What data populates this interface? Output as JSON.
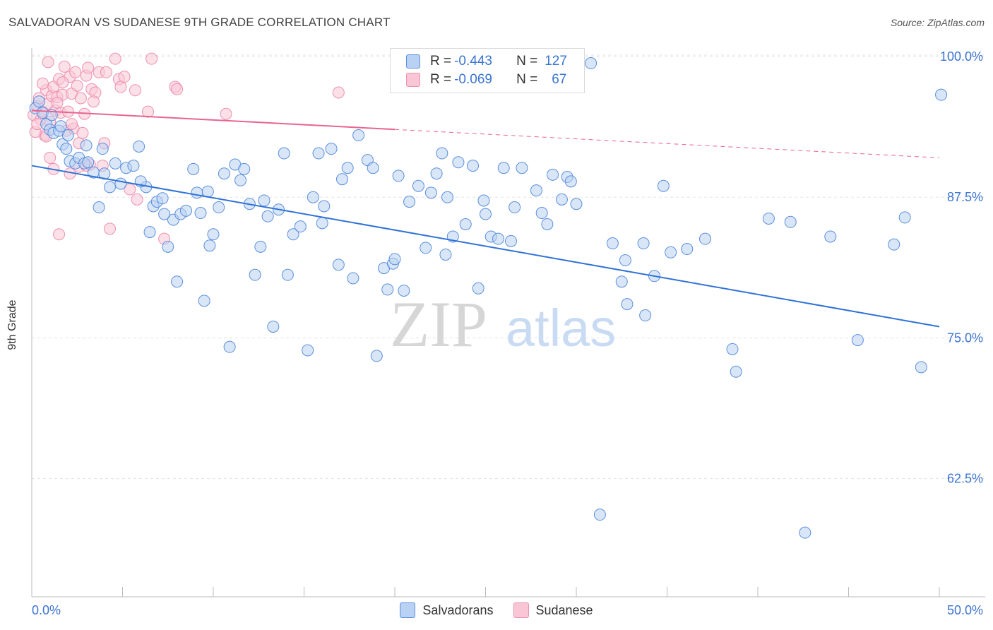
{
  "title": "SALVADORAN VS SUDANESE 9TH GRADE CORRELATION CHART",
  "source": "Source: ZipAtlas.com",
  "watermark": {
    "zip": "ZIP",
    "atlas": "atlas"
  },
  "legend_top": [
    {
      "r_label": "R = ",
      "r_value": "-0.443",
      "n_label": "N = ",
      "n_value": "127"
    },
    {
      "r_label": "R = ",
      "r_value": "-0.069",
      "n_label": "N = ",
      "n_value": "67"
    }
  ],
  "colors": {
    "blue_fill": "#b9d1f3",
    "blue_stroke": "#5a8fdc",
    "blue_line": "#2f72d6",
    "pink_fill": "#f9c6d6",
    "pink_stroke": "#ee8fb0",
    "pink_line": "#e8648f",
    "tick_text": "#3c74d0",
    "grid": "#e3e3e3"
  },
  "chart_data": {
    "type": "scatter",
    "title": "SALVADORAN VS SUDANESE 9TH GRADE CORRELATION CHART",
    "xlabel": "",
    "ylabel": "9th Grade",
    "xlim": [
      0,
      50
    ],
    "ylim": [
      52,
      100.5
    ],
    "x_tick_labels": [
      "0.0%",
      "50.0%"
    ],
    "y_ticks": [
      62.5,
      75.0,
      87.5,
      100.0
    ],
    "y_tick_labels": [
      "62.5%",
      "75.0%",
      "87.5%",
      "100.0%"
    ],
    "grid": true,
    "legend_position": "bottom",
    "series": [
      {
        "name": "Salvadorans",
        "r": -0.443,
        "n": 127,
        "trend": {
          "x": [
            0,
            50
          ],
          "y": [
            90.3,
            76.0
          ],
          "dashed_from": null
        },
        "points": [
          [
            0.2,
            95.4
          ],
          [
            0.4,
            96.0
          ],
          [
            0.6,
            95.0
          ],
          [
            0.8,
            94.0
          ],
          [
            1.0,
            93.5
          ],
          [
            1.2,
            93.2
          ],
          [
            1.5,
            93.4
          ],
          [
            1.7,
            92.2
          ],
          [
            1.9,
            91.8
          ],
          [
            2.1,
            90.7
          ],
          [
            2.4,
            90.5
          ],
          [
            2.6,
            91.0
          ],
          [
            2.9,
            90.5
          ],
          [
            3.1,
            90.6
          ],
          [
            3.4,
            89.7
          ],
          [
            3.7,
            86.6
          ],
          [
            3.9,
            91.8
          ],
          [
            4.3,
            88.4
          ],
          [
            4.6,
            90.5
          ],
          [
            4.9,
            88.7
          ],
          [
            5.2,
            90.1
          ],
          [
            5.6,
            90.3
          ],
          [
            5.9,
            92.0
          ],
          [
            6.3,
            88.4
          ],
          [
            6.5,
            84.4
          ],
          [
            6.7,
            86.7
          ],
          [
            6.9,
            87.1
          ],
          [
            7.2,
            87.4
          ],
          [
            7.5,
            83.1
          ],
          [
            7.8,
            85.5
          ],
          [
            8.0,
            80.0
          ],
          [
            8.2,
            86.0
          ],
          [
            8.5,
            86.3
          ],
          [
            8.9,
            90.0
          ],
          [
            9.1,
            87.9
          ],
          [
            9.3,
            86.1
          ],
          [
            9.5,
            78.3
          ],
          [
            9.8,
            83.2
          ],
          [
            10.0,
            84.2
          ],
          [
            10.3,
            86.6
          ],
          [
            10.6,
            89.6
          ],
          [
            10.9,
            74.2
          ],
          [
            11.2,
            90.4
          ],
          [
            11.5,
            89.0
          ],
          [
            11.7,
            90.0
          ],
          [
            12.0,
            86.9
          ],
          [
            12.3,
            80.6
          ],
          [
            12.6,
            83.1
          ],
          [
            13.0,
            85.8
          ],
          [
            13.3,
            76.0
          ],
          [
            13.6,
            86.4
          ],
          [
            13.9,
            91.4
          ],
          [
            14.1,
            80.6
          ],
          [
            14.4,
            84.2
          ],
          [
            14.8,
            84.9
          ],
          [
            15.2,
            73.9
          ],
          [
            15.5,
            87.5
          ],
          [
            15.8,
            91.4
          ],
          [
            16.1,
            86.7
          ],
          [
            16.5,
            91.8
          ],
          [
            16.9,
            81.5
          ],
          [
            17.1,
            89.1
          ],
          [
            17.4,
            90.1
          ],
          [
            17.7,
            80.3
          ],
          [
            18.0,
            93.0
          ],
          [
            18.5,
            90.8
          ],
          [
            18.8,
            90.1
          ],
          [
            19.0,
            73.4
          ],
          [
            19.4,
            81.2
          ],
          [
            19.6,
            79.3
          ],
          [
            19.9,
            81.6
          ],
          [
            20.2,
            89.4
          ],
          [
            20.5,
            79.2
          ],
          [
            20.8,
            87.1
          ],
          [
            21.3,
            88.5
          ],
          [
            21.7,
            83.0
          ],
          [
            22.0,
            87.9
          ],
          [
            22.3,
            89.6
          ],
          [
            22.6,
            91.4
          ],
          [
            22.9,
            87.5
          ],
          [
            23.2,
            84.0
          ],
          [
            23.5,
            90.6
          ],
          [
            23.9,
            85.1
          ],
          [
            24.3,
            90.3
          ],
          [
            24.6,
            79.4
          ],
          [
            24.9,
            87.2
          ],
          [
            25.3,
            84.0
          ],
          [
            25.7,
            83.8
          ],
          [
            26.0,
            90.1
          ],
          [
            26.4,
            83.6
          ],
          [
            26.6,
            86.6
          ],
          [
            27.0,
            90.1
          ],
          [
            27.8,
            88.1
          ],
          [
            28.1,
            86.1
          ],
          [
            28.7,
            89.5
          ],
          [
            29.2,
            87.3
          ],
          [
            29.5,
            89.3
          ],
          [
            29.7,
            88.9
          ],
          [
            30.0,
            86.9
          ],
          [
            30.8,
            99.4
          ],
          [
            31.3,
            59.3
          ],
          [
            32.0,
            83.4
          ],
          [
            32.5,
            80.0
          ],
          [
            32.7,
            81.9
          ],
          [
            32.8,
            78.0
          ],
          [
            33.7,
            83.4
          ],
          [
            33.8,
            77.0
          ],
          [
            34.3,
            80.5
          ],
          [
            34.8,
            88.5
          ],
          [
            36.1,
            82.9
          ],
          [
            37.1,
            83.8
          ],
          [
            38.6,
            74.0
          ],
          [
            38.8,
            72.0
          ],
          [
            40.6,
            85.6
          ],
          [
            41.8,
            85.3
          ],
          [
            42.6,
            57.7
          ],
          [
            45.5,
            74.8
          ],
          [
            47.5,
            83.3
          ],
          [
            48.1,
            85.7
          ],
          [
            49.0,
            72.4
          ],
          [
            50.1,
            96.6
          ],
          [
            1.1,
            94.8
          ],
          [
            2.0,
            93.0
          ],
          [
            3.0,
            92.1
          ],
          [
            4.0,
            89.6
          ],
          [
            6.0,
            88.9
          ],
          [
            7.3,
            86.0
          ],
          [
            9.7,
            88.0
          ],
          [
            12.8,
            87.2
          ],
          [
            16.0,
            85.2
          ],
          [
            20.0,
            82.0
          ],
          [
            22.8,
            82.4
          ],
          [
            25.0,
            86.0
          ],
          [
            28.4,
            85.1
          ],
          [
            35.2,
            82.6
          ],
          [
            44.0,
            84.0
          ],
          [
            1.6,
            93.8
          ]
        ]
      },
      {
        "name": "Sudanese",
        "r": -0.069,
        "n": 67,
        "trend": {
          "x": [
            0,
            50
          ],
          "y": [
            95.2,
            91.0
          ],
          "dashed_from": 20.0
        },
        "points": [
          [
            0.1,
            94.8
          ],
          [
            0.3,
            95.6
          ],
          [
            0.4,
            96.3
          ],
          [
            0.5,
            94.4
          ],
          [
            0.6,
            95.1
          ],
          [
            0.7,
            93.0
          ],
          [
            0.8,
            97.0
          ],
          [
            0.9,
            95.8
          ],
          [
            1.0,
            94.2
          ],
          [
            1.1,
            96.5
          ],
          [
            1.2,
            97.3
          ],
          [
            1.3,
            95.2
          ],
          [
            1.4,
            96.4
          ],
          [
            1.5,
            98.0
          ],
          [
            1.6,
            95.0
          ],
          [
            1.7,
            96.6
          ],
          [
            1.8,
            99.1
          ],
          [
            1.9,
            93.4
          ],
          [
            2.0,
            95.1
          ],
          [
            2.1,
            98.2
          ],
          [
            2.2,
            96.7
          ],
          [
            2.3,
            93.6
          ],
          [
            2.4,
            98.6
          ],
          [
            2.5,
            97.4
          ],
          [
            2.6,
            92.3
          ],
          [
            2.7,
            96.3
          ],
          [
            2.8,
            93.2
          ],
          [
            2.9,
            94.9
          ],
          [
            3.0,
            98.3
          ],
          [
            3.1,
            99.0
          ],
          [
            3.2,
            90.4
          ],
          [
            3.3,
            97.1
          ],
          [
            3.5,
            96.8
          ],
          [
            3.7,
            98.6
          ],
          [
            3.9,
            90.3
          ],
          [
            4.0,
            92.3
          ],
          [
            4.3,
            84.7
          ],
          [
            4.6,
            99.8
          ],
          [
            4.8,
            98.0
          ],
          [
            4.9,
            97.3
          ],
          [
            5.1,
            98.2
          ],
          [
            5.4,
            88.2
          ],
          [
            5.7,
            97.0
          ],
          [
            5.8,
            87.3
          ],
          [
            6.4,
            95.1
          ],
          [
            6.6,
            99.8
          ],
          [
            7.3,
            83.8
          ],
          [
            7.9,
            97.3
          ],
          [
            8.0,
            97.1
          ],
          [
            10.7,
            94.9
          ],
          [
            16.9,
            96.8
          ],
          [
            0.2,
            93.3
          ],
          [
            0.8,
            92.9
          ],
          [
            1.2,
            90.0
          ],
          [
            1.5,
            84.2
          ],
          [
            2.1,
            89.6
          ],
          [
            2.6,
            90.2
          ],
          [
            3.0,
            90.3
          ],
          [
            0.6,
            97.6
          ],
          [
            0.9,
            99.5
          ],
          [
            1.4,
            95.9
          ],
          [
            2.2,
            94.0
          ],
          [
            3.4,
            96.0
          ],
          [
            4.1,
            98.6
          ],
          [
            1.0,
            91.0
          ],
          [
            0.3,
            94.0
          ],
          [
            1.7,
            97.7
          ]
        ]
      }
    ]
  },
  "legend_bottom": [
    "Salvadorans",
    "Sudanese"
  ]
}
